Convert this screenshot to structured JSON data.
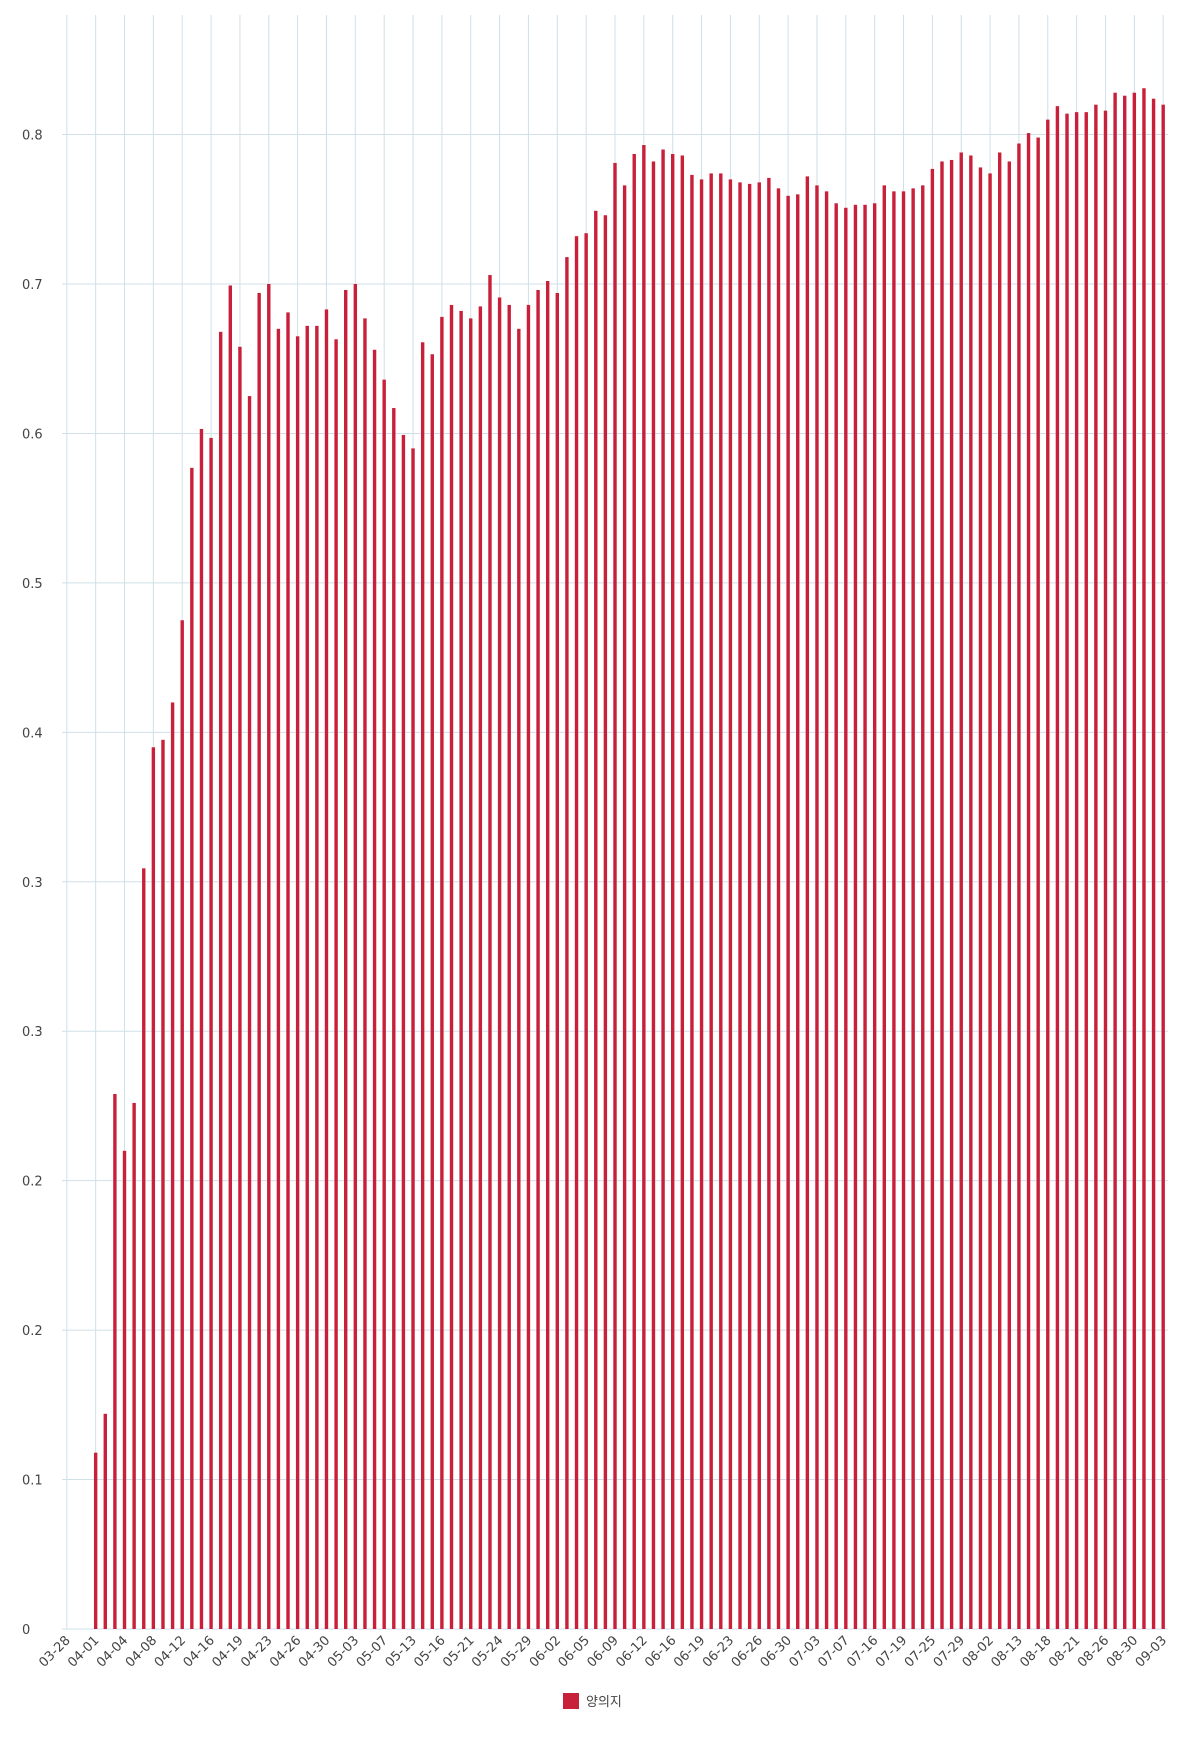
{
  "chart_data": {
    "type": "bar",
    "series": [
      {
        "name": "양의지",
        "color": "#c8203a",
        "values": [
          null,
          null,
          null,
          0.109,
          0.122,
          0.229,
          0.21,
          0.226,
          0.309,
          0.39,
          0.395,
          0.42,
          0.475,
          0.577,
          0.603,
          0.597,
          0.668,
          0.699,
          0.658,
          0.625,
          0.694,
          0.7,
          0.67,
          0.681,
          0.665,
          0.672,
          0.672,
          0.683,
          0.663,
          0.696,
          0.7,
          0.677,
          0.656,
          0.636,
          0.617,
          0.599,
          0.59,
          0.661,
          0.653,
          0.678,
          0.686,
          0.682,
          0.677,
          0.685,
          0.706,
          0.691,
          0.686,
          0.67,
          0.686,
          0.696,
          0.702,
          0.694,
          0.718,
          0.732,
          0.734,
          0.749,
          0.746,
          0.781,
          0.766,
          0.787,
          0.793,
          0.782,
          0.79,
          0.787,
          0.786,
          0.773,
          0.77,
          0.774,
          0.774,
          0.77,
          0.768,
          0.767,
          0.768,
          0.771,
          0.764,
          0.759,
          0.76,
          0.772,
          0.766,
          0.762,
          0.754,
          0.751,
          0.753,
          0.753,
          0.754,
          0.766,
          0.762,
          0.762,
          0.764,
          0.766,
          0.777,
          0.782,
          0.783,
          0.788,
          0.786,
          0.778,
          0.774,
          0.788,
          0.782,
          0.794,
          0.801,
          0.798,
          0.81,
          0.819,
          0.814,
          0.815,
          0.815,
          0.82,
          0.816,
          0.828,
          0.826,
          0.828,
          0.831,
          0.824,
          0.82
        ]
      }
    ],
    "categories": [
      "03-28",
      null,
      null,
      "04-01",
      null,
      null,
      "04-04",
      null,
      null,
      "04-08",
      null,
      null,
      "04-12",
      null,
      null,
      "04-16",
      null,
      null,
      "04-19",
      null,
      null,
      "04-23",
      null,
      null,
      "04-26",
      null,
      null,
      "04-30",
      null,
      null,
      "05-03",
      null,
      null,
      "05-07",
      null,
      null,
      "05-13",
      null,
      null,
      "05-16",
      null,
      null,
      "05-21",
      null,
      null,
      "05-24",
      null,
      null,
      "05-29",
      null,
      null,
      "06-02",
      null,
      null,
      "06-05",
      null,
      null,
      "06-09",
      null,
      null,
      "06-12",
      null,
      null,
      "06-16",
      null,
      null,
      "06-19",
      null,
      null,
      "06-23",
      null,
      null,
      "06-26",
      null,
      null,
      "06-30",
      null,
      null,
      "07-03",
      null,
      null,
      "07-07",
      null,
      null,
      "07-16",
      null,
      null,
      "07-19",
      null,
      null,
      "07-25",
      null,
      null,
      "07-29",
      null,
      null,
      "08-02",
      null,
      null,
      "08-13",
      null,
      null,
      "08-18",
      null,
      null,
      "08-21",
      null,
      null,
      "08-26",
      null,
      null,
      "08-30",
      null,
      null,
      "09-03"
    ],
    "ylim": [
      0,
      0.88
    ],
    "yticks": [
      0,
      0.1,
      {
        "value": 0.15,
        "label": "0.2"
      },
      0.2,
      {
        "value": 0.25,
        "label": "0.3"
      },
      0.3,
      0.4,
      0.5,
      0.6,
      0.7,
      0.8
    ],
    "grid": true,
    "legend": "bottom"
  }
}
